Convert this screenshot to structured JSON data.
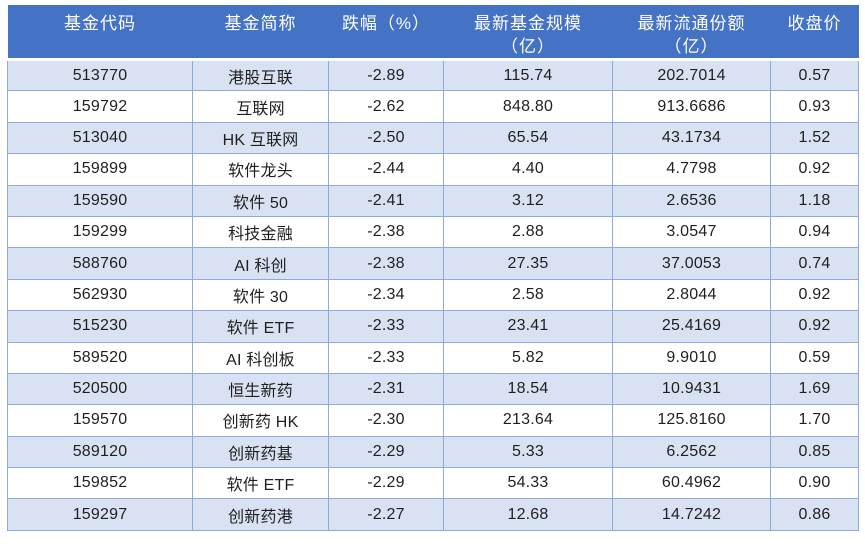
{
  "table": {
    "columns": [
      {
        "key": "code",
        "label": "基金代码"
      },
      {
        "key": "name",
        "label": "基金简称"
      },
      {
        "key": "change",
        "label": "跌幅（%）"
      },
      {
        "key": "scale",
        "label": "最新基金规模\n（亿）"
      },
      {
        "key": "shares",
        "label": "最新流通份额\n（亿）"
      },
      {
        "key": "close",
        "label": "收盘价"
      }
    ],
    "rows": [
      [
        "513770",
        "港股互联",
        "-2.89",
        "115.74",
        "202.7014",
        "0.57"
      ],
      [
        "159792",
        "互联网",
        "-2.62",
        "848.80",
        "913.6686",
        "0.93"
      ],
      [
        "513040",
        "HK 互联网",
        "-2.50",
        "65.54",
        "43.1734",
        "1.52"
      ],
      [
        "159899",
        "软件龙头",
        "-2.44",
        "4.40",
        "4.7798",
        "0.92"
      ],
      [
        "159590",
        "软件 50",
        "-2.41",
        "3.12",
        "2.6536",
        "1.18"
      ],
      [
        "159299",
        "科技金融",
        "-2.38",
        "2.88",
        "3.0547",
        "0.94"
      ],
      [
        "588760",
        "AI 科创",
        "-2.38",
        "27.35",
        "37.0053",
        "0.74"
      ],
      [
        "562930",
        "软件 30",
        "-2.34",
        "2.58",
        "2.8044",
        "0.92"
      ],
      [
        "515230",
        "软件 ETF",
        "-2.33",
        "23.41",
        "25.4169",
        "0.92"
      ],
      [
        "589520",
        "AI 科创板",
        "-2.33",
        "5.82",
        "9.9010",
        "0.59"
      ],
      [
        "520500",
        "恒生新药",
        "-2.31",
        "18.54",
        "10.9431",
        "1.69"
      ],
      [
        "159570",
        "创新药 HK",
        "-2.30",
        "213.64",
        "125.8160",
        "1.70"
      ],
      [
        "589120",
        "创新药基",
        "-2.29",
        "5.33",
        "6.2562",
        "0.85"
      ],
      [
        "159852",
        "软件 ETF",
        "-2.29",
        "54.33",
        "60.4962",
        "0.90"
      ],
      [
        "159297",
        "创新药港",
        "-2.27",
        "12.68",
        "14.7242",
        "0.86"
      ]
    ],
    "colors": {
      "header_bg": "#4472C4",
      "header_text": "#FFFFFF",
      "band_row_bg": "#D9E2F3",
      "plain_row_bg": "#FFFFFF",
      "border": "#8EAADB",
      "body_text": "#1F1F1F"
    }
  }
}
